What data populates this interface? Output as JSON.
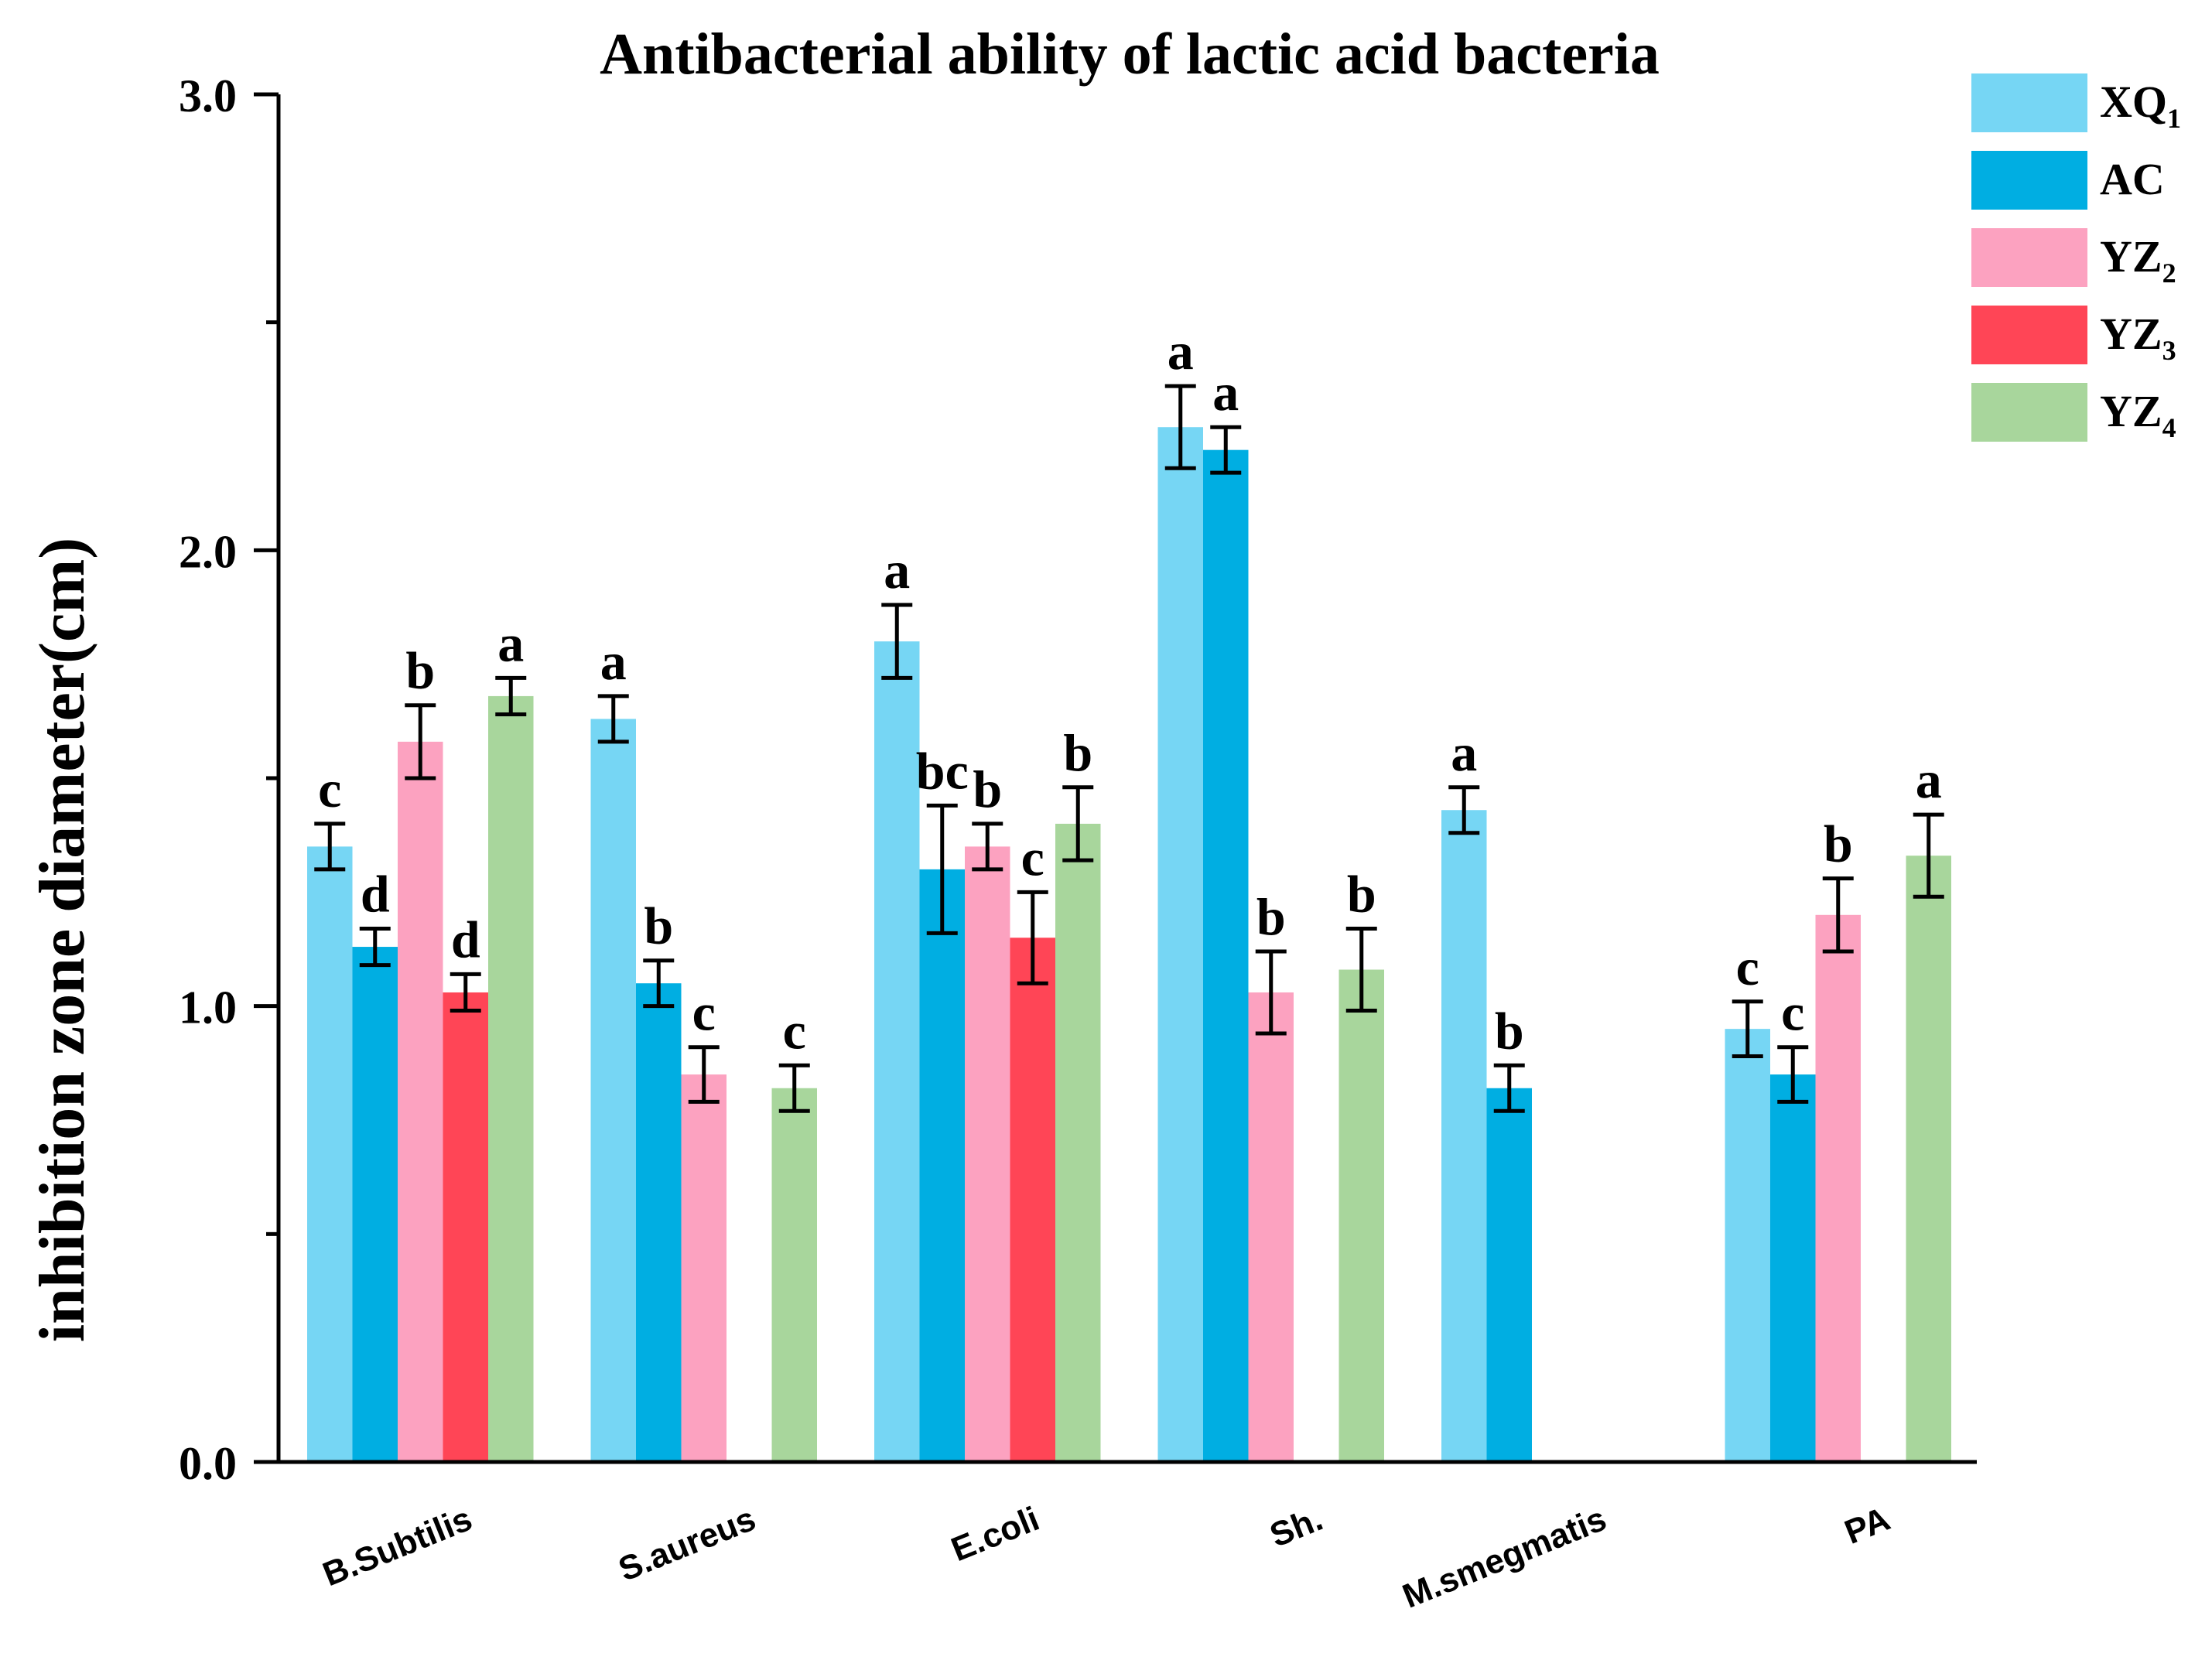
{
  "chart_data": {
    "type": "bar",
    "title": "Antibacterial ability of lactic acid bacteria",
    "xlabel": "",
    "ylabel": "inhibition zone diameter(cm)",
    "ylim": [
      0,
      3.0
    ],
    "yticks": [
      "0.0",
      "1.0",
      "2.0",
      "3.0"
    ],
    "categories": [
      "B.Subtilis",
      "S.aureus",
      "E.coli",
      "Sh.",
      "M.smegmatis",
      "PA"
    ],
    "legend_position": "top-right",
    "series": [
      {
        "name": "XQ1",
        "label_main": "XQ",
        "label_sub": "1",
        "color": "#76D6F4",
        "values": [
          1.35,
          1.63,
          1.8,
          2.27,
          1.43,
          0.95
        ],
        "errors": [
          0.05,
          0.05,
          0.08,
          0.09,
          0.05,
          0.06
        ],
        "letters": [
          "c",
          "a",
          "a",
          "a",
          "a",
          "c"
        ]
      },
      {
        "name": "AC",
        "label_main": "AC",
        "label_sub": "",
        "color": "#00AEE2",
        "values": [
          1.13,
          1.05,
          1.3,
          2.22,
          0.82,
          0.85
        ],
        "errors": [
          0.04,
          0.05,
          0.14,
          0.05,
          0.05,
          0.06
        ],
        "letters": [
          "d",
          "b",
          "bc",
          "a",
          "b",
          "c"
        ]
      },
      {
        "name": "YZ2",
        "label_main": "YZ",
        "label_sub": "2",
        "color": "#FCA2C0",
        "values": [
          1.58,
          0.85,
          1.35,
          1.03,
          null,
          1.2
        ],
        "errors": [
          0.08,
          0.06,
          0.05,
          0.09,
          null,
          0.08
        ],
        "letters": [
          "b",
          "c",
          "b",
          "b",
          "",
          "b"
        ]
      },
      {
        "name": "YZ3",
        "label_main": "YZ",
        "label_sub": "3",
        "color": "#FF4556",
        "values": [
          1.03,
          null,
          1.15,
          null,
          null,
          null
        ],
        "errors": [
          0.04,
          null,
          0.1,
          null,
          null,
          null
        ],
        "letters": [
          "d",
          "",
          "c",
          "",
          "",
          ""
        ]
      },
      {
        "name": "YZ4",
        "label_main": "YZ",
        "label_sub": "4",
        "color": "#A8D69C",
        "values": [
          1.68,
          0.82,
          1.4,
          1.08,
          null,
          1.33
        ],
        "errors": [
          0.04,
          0.05,
          0.08,
          0.09,
          null,
          0.09
        ],
        "letters": [
          "a",
          "c",
          "b",
          "b",
          "",
          "a"
        ]
      }
    ]
  }
}
